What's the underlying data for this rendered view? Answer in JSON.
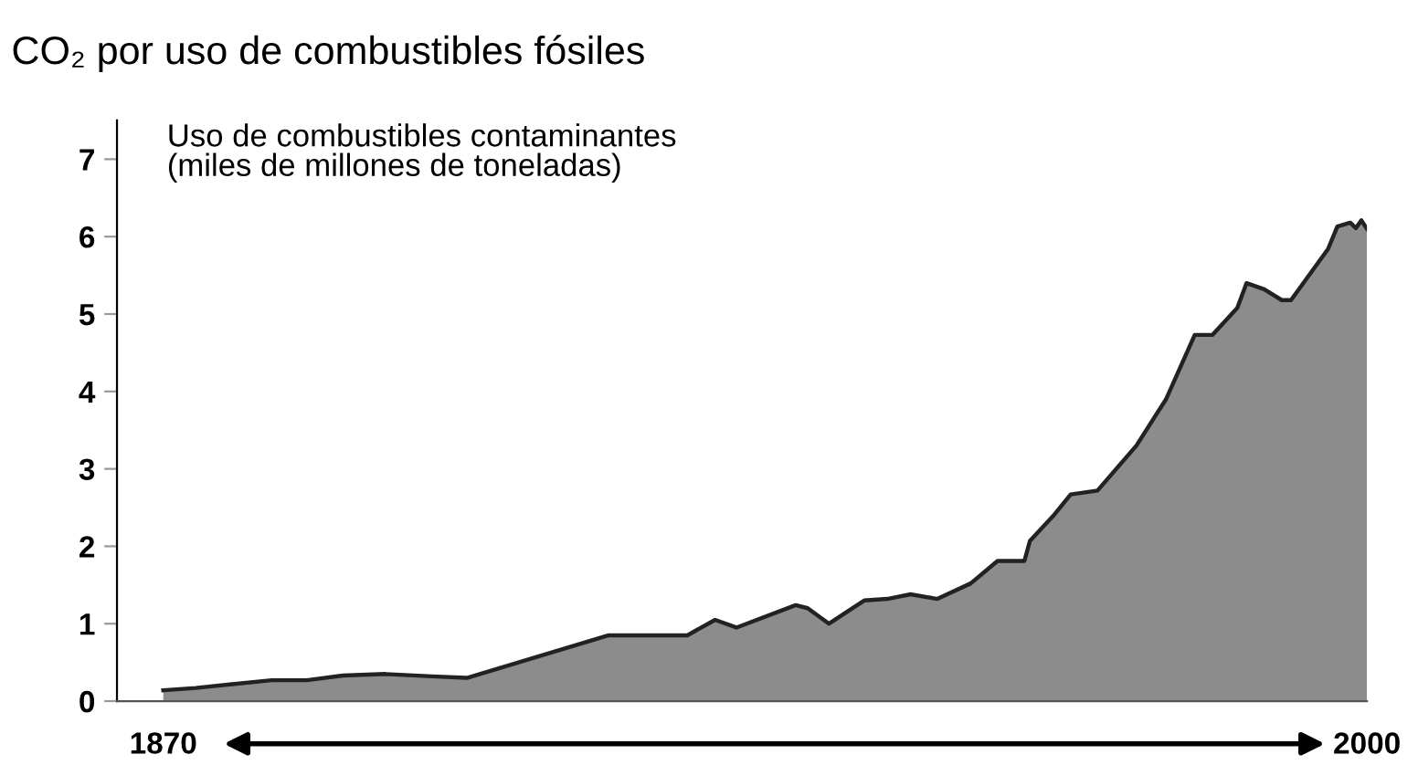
{
  "chart_data": {
    "type": "area",
    "title": "CO₂ por uso de combustibles fósiles",
    "ylabel": "Uso de combustibles contaminantes\n(miles de millones de toneladas)",
    "x": [
      1870,
      1873.5,
      1881.7,
      1885.5,
      1889.4,
      1894,
      1899,
      1902.8,
      1918.1,
      1926.6,
      1929.6,
      1931.9,
      1938.3,
      1939.6,
      1941.9,
      1945.7,
      1948.2,
      1950.7,
      1953.6,
      1957.2,
      1960.1,
      1963,
      1963.6,
      1966.1,
      1968,
      1970.9,
      1975.1,
      1978.3,
      1981.4,
      1983.3,
      1986,
      1987,
      1988.9,
      1990.8,
      1991.8,
      1995.8,
      1996.8,
      1998.2,
      1998.8,
      1999.4,
      2000
    ],
    "series": [
      {
        "color": "#8c8c8c",
        "values": [
          0.14,
          0.17,
          0.27,
          0.27,
          0.33,
          0.35,
          0.32,
          0.3,
          0.85,
          0.85,
          1.05,
          0.95,
          1.24,
          1.2,
          1.0,
          1.3,
          1.32,
          1.38,
          1.32,
          1.52,
          1.81,
          1.81,
          2.07,
          2.39,
          2.67,
          2.72,
          3.3,
          3.9,
          4.73,
          4.73,
          5.08,
          5.4,
          5.32,
          5.18,
          5.18,
          5.84,
          6.13,
          6.18,
          6.11,
          6.21,
          6.1
        ]
      }
    ],
    "xlim": [
      1865,
      2000
    ],
    "xticks": [
      1870,
      2000
    ],
    "ylim": [
      0,
      7.5
    ],
    "yticks": [
      0,
      1,
      2,
      3,
      4,
      5,
      6,
      7
    ],
    "grid": false,
    "legend": false
  }
}
